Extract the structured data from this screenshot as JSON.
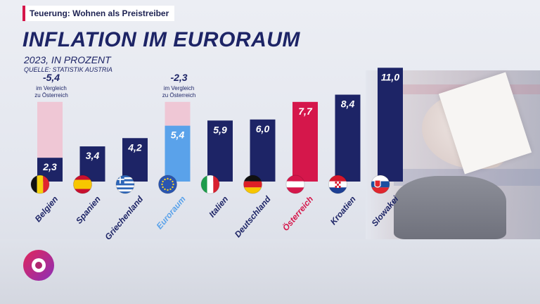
{
  "banner": {
    "text": "Teuerung: Wohnen als Preistreiber"
  },
  "header": {
    "title": "INFLATION IM EURORAUM",
    "subtitle": "2023, IN PROZENT",
    "source": "QUELLE: STATISTIK AUSTRIA"
  },
  "colors": {
    "navy": "#1d2466",
    "euro_blue": "#5aa2ea",
    "austria_red": "#d5174b",
    "ghost_pink": "#efc3d2"
  },
  "chart_data": {
    "type": "bar",
    "categories": [
      "Belgien",
      "Spanien",
      "Griechenland",
      "Euroraum",
      "Italien",
      "Deutschland",
      "Österreich",
      "Kroatien",
      "Slowakei"
    ],
    "values": [
      2.3,
      3.4,
      4.2,
      5.4,
      5.9,
      6.0,
      7.7,
      8.4,
      11.0
    ],
    "value_labels": [
      "2,3",
      "3,4",
      "4,2",
      "5,4",
      "5,9",
      "6,0",
      "7,7",
      "8,4",
      "11,0"
    ],
    "highlight": {
      "Euroraum": "#5aa2ea",
      "Österreich": "#d5174b"
    },
    "flag_icons": [
      "flag-belgium-icon",
      "flag-spain-icon",
      "flag-greece-icon",
      "flag-eu-icon",
      "flag-italy-icon",
      "flag-germany-icon",
      "flag-austria-icon",
      "flag-croatia-icon",
      "flag-slovakia-icon"
    ],
    "comparison_reference": 7.7,
    "annotations": [
      {
        "category": "Belgien",
        "value": "-5,4",
        "text_line1": "im Vergleich",
        "text_line2": "zu Österreich"
      },
      {
        "category": "Euroraum",
        "value": "-2,3",
        "text_line1": "im Vergleich",
        "text_line2": "zu Österreich"
      }
    ],
    "ylim": [
      0,
      11.0
    ],
    "grid": false
  }
}
